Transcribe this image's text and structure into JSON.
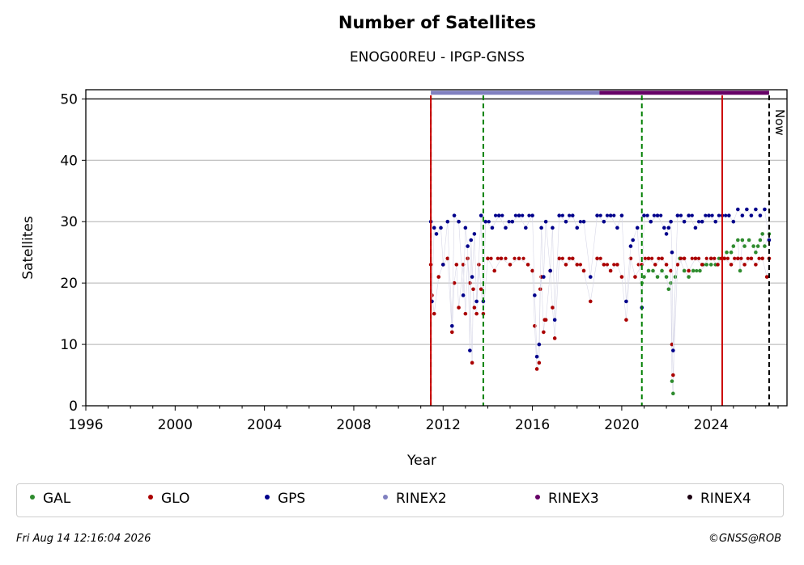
{
  "chart_data": {
    "type": "scatter",
    "title": "Number of Satellites",
    "subtitle": "ENOG00REU - IPGP-GNSS",
    "xlabel": "Year",
    "ylabel": "Satellites",
    "xlim": [
      1996,
      2027.4
    ],
    "ylim": [
      0,
      51.5
    ],
    "xticks": [
      "1996",
      "2000",
      "2004",
      "2008",
      "2012",
      "2016",
      "2020",
      "2024"
    ],
    "xtick_values": [
      1996,
      2000,
      2004,
      2008,
      2012,
      2016,
      2020,
      2024
    ],
    "yticks": [
      "0",
      "10",
      "20",
      "30",
      "40",
      "50"
    ],
    "ytick_values": [
      0,
      10,
      20,
      30,
      40,
      50
    ],
    "grid": "horizontal",
    "now_label": "Now",
    "now_year": 2026.6,
    "vlines": [
      {
        "year": 2011.45,
        "color": "#008000",
        "style": "dashed"
      },
      {
        "year": 2011.45,
        "color": "#cc0000",
        "style": "solid"
      },
      {
        "year": 2013.8,
        "color": "#008000",
        "style": "dashed"
      },
      {
        "year": 2020.9,
        "color": "#008000",
        "style": "dashed"
      },
      {
        "year": 2024.5,
        "color": "#cc0000",
        "style": "solid"
      }
    ],
    "rinex_bars": [
      {
        "name": "RINEX2",
        "from": 2011.45,
        "to": 2019.0,
        "color": "#8080c0"
      },
      {
        "name": "RINEX3",
        "from": 2019.0,
        "to": 2026.6,
        "color": "#660066"
      }
    ],
    "series": [
      {
        "name": "GAL",
        "color": "#2e8b2e",
        "points": [
          [
            2020.9,
            20
          ],
          [
            2021.0,
            21
          ],
          [
            2021.2,
            22
          ],
          [
            2021.4,
            22
          ],
          [
            2021.6,
            21
          ],
          [
            2021.8,
            22
          ],
          [
            2022.0,
            21
          ],
          [
            2022.1,
            19
          ],
          [
            2022.2,
            20
          ],
          [
            2022.25,
            4
          ],
          [
            2022.3,
            2
          ],
          [
            2022.4,
            21
          ],
          [
            2022.6,
            24
          ],
          [
            2022.8,
            22
          ],
          [
            2023.0,
            21
          ],
          [
            2023.2,
            22
          ],
          [
            2023.5,
            22
          ],
          [
            2023.8,
            23
          ],
          [
            2024.0,
            23
          ],
          [
            2024.2,
            23
          ],
          [
            2024.5,
            24
          ],
          [
            2024.7,
            25
          ],
          [
            2024.9,
            25
          ],
          [
            2025.0,
            26
          ],
          [
            2025.2,
            27
          ],
          [
            2025.3,
            22
          ],
          [
            2025.4,
            27
          ],
          [
            2025.5,
            26
          ],
          [
            2025.7,
            27
          ],
          [
            2025.9,
            26
          ],
          [
            2026.0,
            25
          ],
          [
            2026.1,
            26
          ],
          [
            2026.2,
            27
          ],
          [
            2026.3,
            28
          ],
          [
            2026.4,
            26
          ],
          [
            2026.6,
            28
          ]
        ]
      },
      {
        "name": "GLO",
        "color": "#aa0000",
        "points": [
          [
            2011.45,
            23
          ],
          [
            2011.5,
            18
          ],
          [
            2011.6,
            15
          ],
          [
            2011.8,
            21
          ],
          [
            2012.0,
            23
          ],
          [
            2012.2,
            24
          ],
          [
            2012.4,
            12
          ],
          [
            2012.5,
            20
          ],
          [
            2012.6,
            23
          ],
          [
            2012.7,
            16
          ],
          [
            2012.9,
            23
          ],
          [
            2013.0,
            15
          ],
          [
            2013.1,
            24
          ],
          [
            2013.2,
            20
          ],
          [
            2013.3,
            7
          ],
          [
            2013.35,
            19
          ],
          [
            2013.4,
            16
          ],
          [
            2013.5,
            15
          ],
          [
            2013.6,
            23
          ],
          [
            2013.7,
            19
          ],
          [
            2013.8,
            15
          ],
          [
            2014.0,
            24
          ],
          [
            2014.3,
            22
          ],
          [
            2014.6,
            24
          ],
          [
            2015.0,
            23
          ],
          [
            2015.4,
            24
          ],
          [
            2015.8,
            23
          ],
          [
            2016.0,
            22
          ],
          [
            2016.1,
            13
          ],
          [
            2016.2,
            6
          ],
          [
            2016.3,
            7
          ],
          [
            2016.35,
            19
          ],
          [
            2016.4,
            21
          ],
          [
            2016.5,
            12
          ],
          [
            2016.55,
            14
          ],
          [
            2016.6,
            14
          ],
          [
            2016.8,
            22
          ],
          [
            2016.9,
            16
          ],
          [
            2017.0,
            11
          ],
          [
            2017.2,
            24
          ],
          [
            2017.5,
            23
          ],
          [
            2017.8,
            24
          ],
          [
            2018.0,
            23
          ],
          [
            2018.3,
            22
          ],
          [
            2018.6,
            17
          ],
          [
            2018.9,
            24
          ],
          [
            2019.2,
            23
          ],
          [
            2019.5,
            22
          ],
          [
            2019.8,
            23
          ],
          [
            2020.0,
            21
          ],
          [
            2020.2,
            14
          ],
          [
            2020.4,
            24
          ],
          [
            2020.6,
            21
          ],
          [
            2020.9,
            23
          ],
          [
            2021.2,
            24
          ],
          [
            2021.5,
            23
          ],
          [
            2021.8,
            24
          ],
          [
            2022.0,
            23
          ],
          [
            2022.2,
            22
          ],
          [
            2022.25,
            10
          ],
          [
            2022.3,
            5
          ],
          [
            2022.5,
            23
          ],
          [
            2022.8,
            24
          ],
          [
            2023.0,
            22
          ],
          [
            2023.3,
            24
          ],
          [
            2023.6,
            23
          ],
          [
            2024.0,
            24
          ],
          [
            2024.3,
            23
          ],
          [
            2024.6,
            24
          ],
          [
            2024.9,
            23
          ],
          [
            2025.2,
            24
          ],
          [
            2025.5,
            23
          ],
          [
            2025.8,
            24
          ],
          [
            2026.0,
            23
          ],
          [
            2026.3,
            24
          ],
          [
            2026.5,
            21
          ],
          [
            2026.6,
            24
          ]
        ]
      },
      {
        "name": "GPS",
        "color": "#00008b",
        "points": [
          [
            2011.45,
            30
          ],
          [
            2011.5,
            17
          ],
          [
            2011.6,
            29
          ],
          [
            2011.7,
            28
          ],
          [
            2011.9,
            29
          ],
          [
            2012.0,
            23
          ],
          [
            2012.2,
            30
          ],
          [
            2012.4,
            13
          ],
          [
            2012.5,
            31
          ],
          [
            2012.7,
            30
          ],
          [
            2012.9,
            18
          ],
          [
            2013.0,
            29
          ],
          [
            2013.1,
            26
          ],
          [
            2013.2,
            9
          ],
          [
            2013.25,
            27
          ],
          [
            2013.3,
            21
          ],
          [
            2013.4,
            28
          ],
          [
            2013.5,
            17
          ],
          [
            2013.7,
            31
          ],
          [
            2013.8,
            17
          ],
          [
            2013.9,
            30
          ],
          [
            2014.2,
            29
          ],
          [
            2014.5,
            31
          ],
          [
            2014.8,
            29
          ],
          [
            2015.1,
            30
          ],
          [
            2015.4,
            31
          ],
          [
            2015.7,
            29
          ],
          [
            2016.0,
            31
          ],
          [
            2016.1,
            18
          ],
          [
            2016.2,
            8
          ],
          [
            2016.3,
            10
          ],
          [
            2016.4,
            29
          ],
          [
            2016.5,
            21
          ],
          [
            2016.6,
            30
          ],
          [
            2016.8,
            22
          ],
          [
            2016.9,
            29
          ],
          [
            2017.0,
            14
          ],
          [
            2017.2,
            31
          ],
          [
            2017.5,
            30
          ],
          [
            2017.8,
            31
          ],
          [
            2018.0,
            29
          ],
          [
            2018.3,
            30
          ],
          [
            2018.6,
            21
          ],
          [
            2018.9,
            31
          ],
          [
            2019.2,
            30
          ],
          [
            2019.5,
            31
          ],
          [
            2019.8,
            29
          ],
          [
            2020.0,
            31
          ],
          [
            2020.2,
            17
          ],
          [
            2020.4,
            26
          ],
          [
            2020.5,
            27
          ],
          [
            2020.7,
            29
          ],
          [
            2020.9,
            16
          ],
          [
            2021.0,
            31
          ],
          [
            2021.3,
            30
          ],
          [
            2021.6,
            31
          ],
          [
            2021.9,
            29
          ],
          [
            2022.0,
            28
          ],
          [
            2022.1,
            29
          ],
          [
            2022.2,
            30
          ],
          [
            2022.25,
            25
          ],
          [
            2022.3,
            9
          ],
          [
            2022.5,
            31
          ],
          [
            2022.8,
            30
          ],
          [
            2023.0,
            31
          ],
          [
            2023.3,
            29
          ],
          [
            2023.6,
            30
          ],
          [
            2023.9,
            31
          ],
          [
            2024.2,
            30
          ],
          [
            2024.5,
            31
          ],
          [
            2024.8,
            31
          ],
          [
            2025.0,
            30
          ],
          [
            2025.2,
            32
          ],
          [
            2025.4,
            31
          ],
          [
            2025.6,
            32
          ],
          [
            2025.8,
            31
          ],
          [
            2026.0,
            32
          ],
          [
            2026.2,
            31
          ],
          [
            2026.4,
            32
          ],
          [
            2026.6,
            27
          ]
        ]
      }
    ]
  },
  "legend": [
    {
      "label": "GAL",
      "color": "#2e8b2e"
    },
    {
      "label": "GLO",
      "color": "#aa0000"
    },
    {
      "label": "GPS",
      "color": "#00008b"
    },
    {
      "label": "RINEX2",
      "color": "#8080c0"
    },
    {
      "label": "RINEX3",
      "color": "#660066"
    },
    {
      "label": "RINEX4",
      "color": "#1a0010"
    }
  ],
  "footer": {
    "timestamp": "Fri Aug 14 12:16:04 2026",
    "credit": "©GNSS@ROB"
  }
}
